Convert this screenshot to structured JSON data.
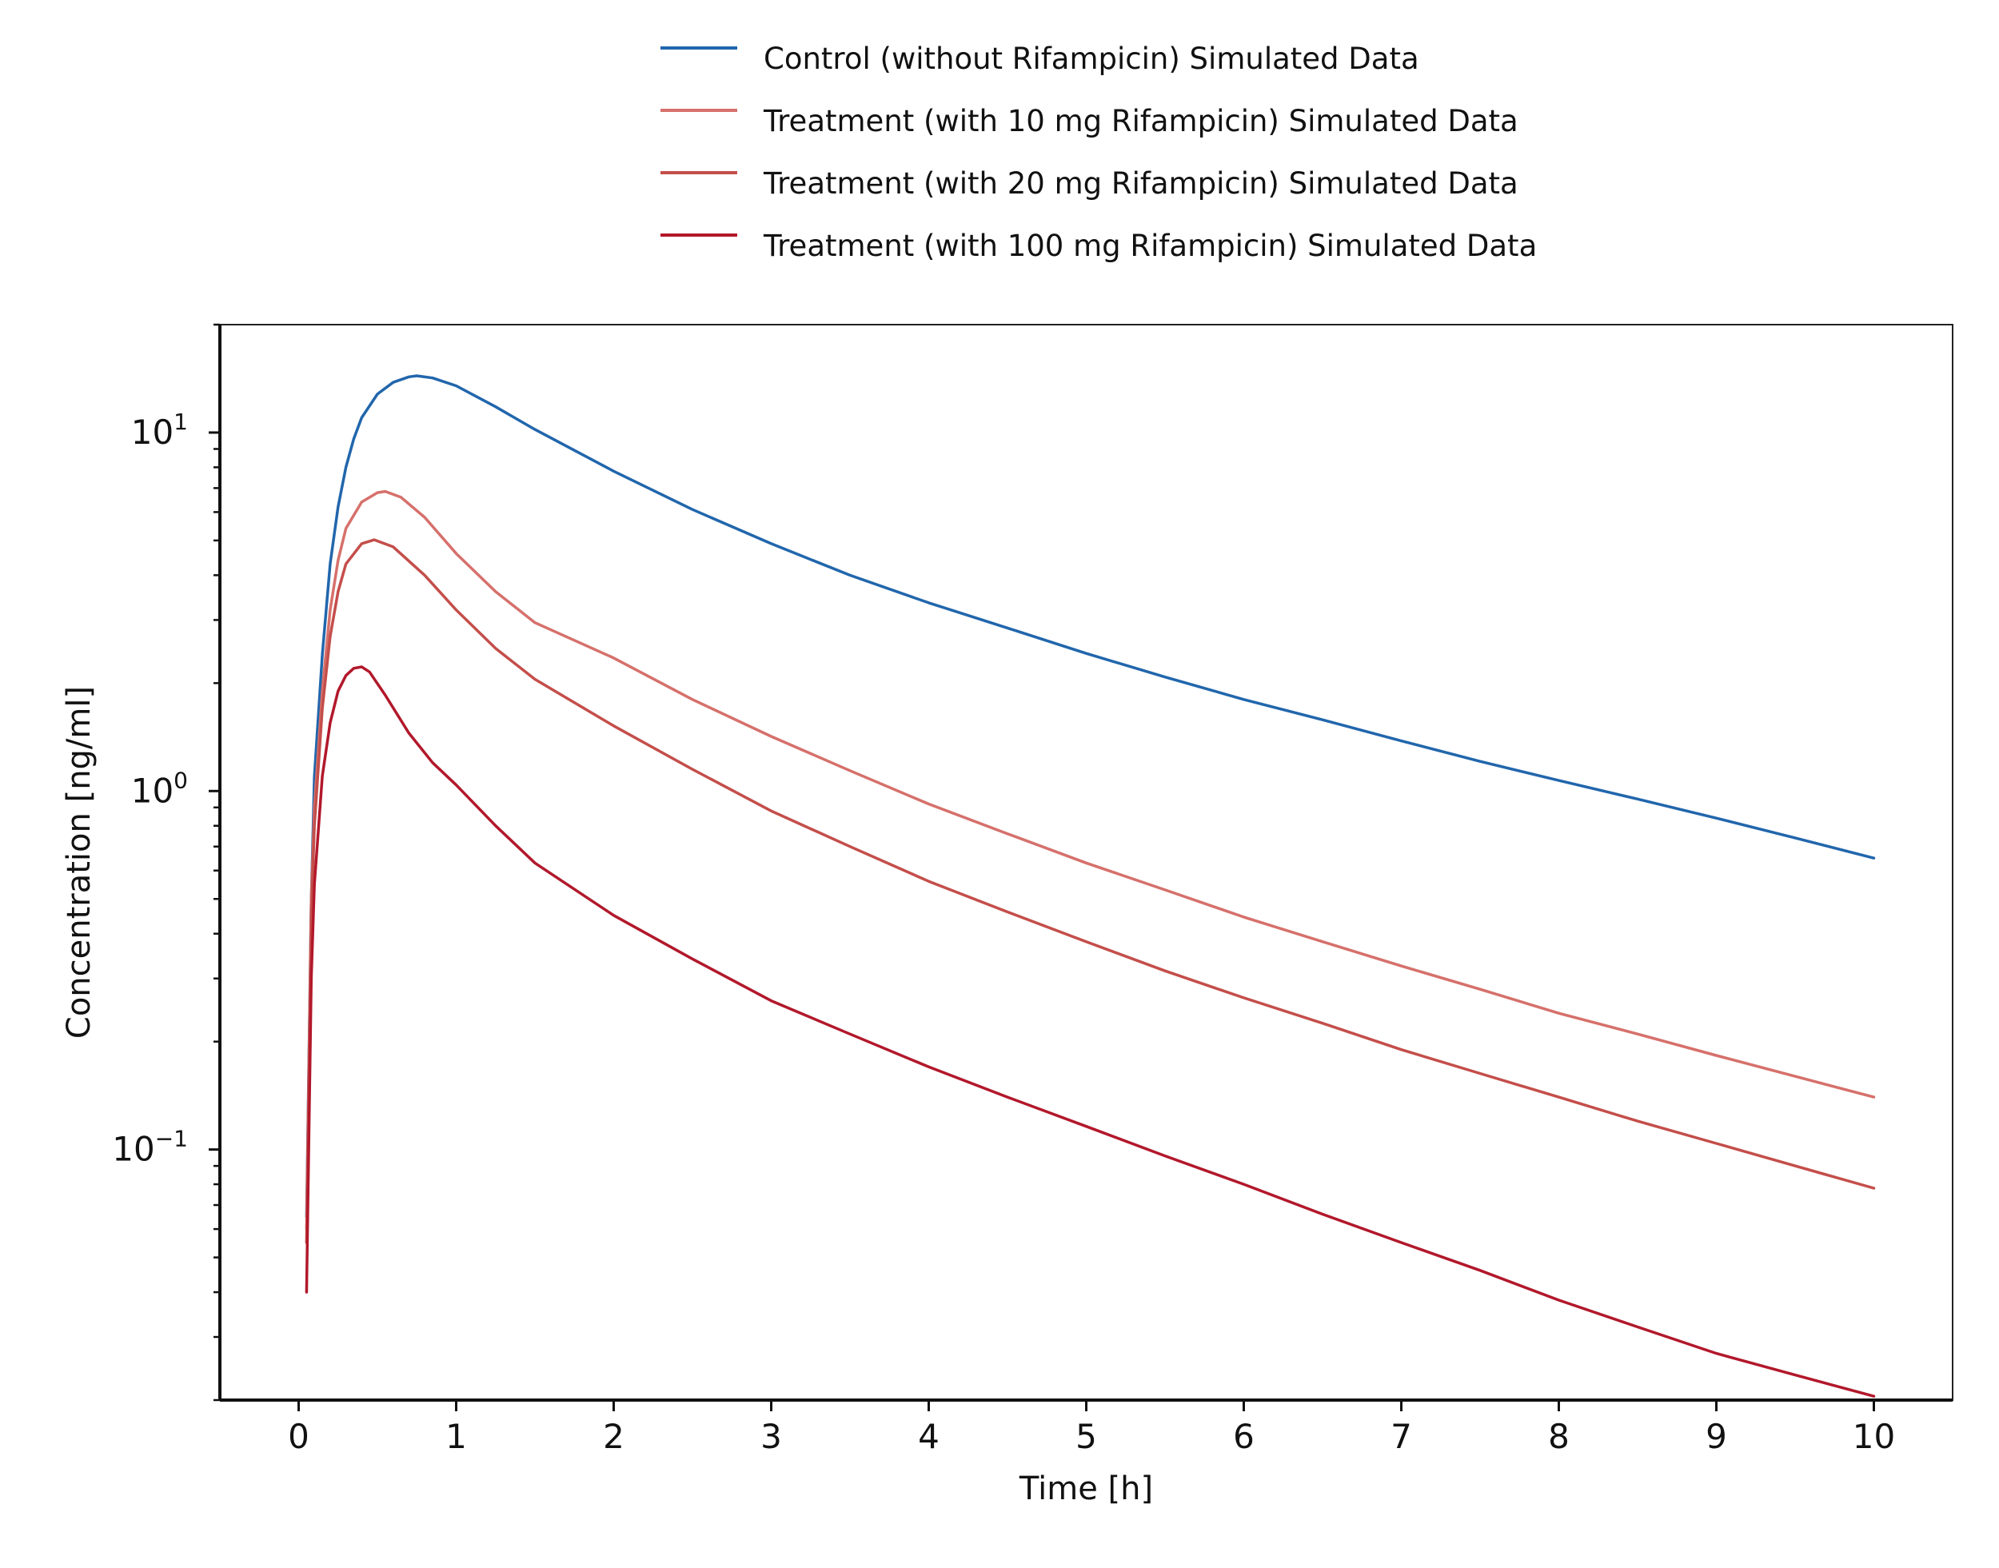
{
  "chart_data": {
    "type": "line",
    "title": "",
    "xlabel": "Time [h]",
    "ylabel": "Concentration [ng/ml]",
    "yscale": "log",
    "xlim": [
      -0.5,
      10.5
    ],
    "ylim": [
      0.02,
      20
    ],
    "x_ticks": [
      "0",
      "1",
      "2",
      "3",
      "4",
      "5",
      "6",
      "7",
      "8",
      "9",
      "10"
    ],
    "y_ticks": [
      {
        "base": "10",
        "exp": "1",
        "value": 10
      },
      {
        "base": "10",
        "exp": "0",
        "value": 1
      },
      {
        "base": "10",
        "exp": "−1",
        "value": 0.1
      }
    ],
    "grid": false,
    "legend_position": "top-center",
    "series": [
      {
        "name": "Control (without Rifampicin) Simulated Data",
        "color": "#2166ac",
        "points": [
          [
            0.05,
            0.065
          ],
          [
            0.08,
            0.5
          ],
          [
            0.1,
            1.1
          ],
          [
            0.15,
            2.4
          ],
          [
            0.2,
            4.3
          ],
          [
            0.25,
            6.2
          ],
          [
            0.3,
            8.0
          ],
          [
            0.35,
            9.6
          ],
          [
            0.4,
            11.0
          ],
          [
            0.5,
            12.8
          ],
          [
            0.6,
            13.8
          ],
          [
            0.7,
            14.3
          ],
          [
            0.75,
            14.4
          ],
          [
            0.85,
            14.2
          ],
          [
            1.0,
            13.5
          ],
          [
            1.25,
            11.8
          ],
          [
            1.5,
            10.2
          ],
          [
            2.0,
            7.8
          ],
          [
            2.5,
            6.1
          ],
          [
            3.0,
            4.9
          ],
          [
            3.5,
            4.0
          ],
          [
            4.0,
            3.35
          ],
          [
            4.5,
            2.85
          ],
          [
            5.0,
            2.42
          ],
          [
            5.5,
            2.08
          ],
          [
            6.0,
            1.8
          ],
          [
            6.5,
            1.58
          ],
          [
            7.0,
            1.38
          ],
          [
            7.5,
            1.21
          ],
          [
            8.0,
            1.07
          ],
          [
            8.5,
            0.95
          ],
          [
            9.0,
            0.84
          ],
          [
            9.5,
            0.74
          ],
          [
            10.0,
            0.65
          ]
        ]
      },
      {
        "name": "Treatment (with 10 mg Rifampicin) Simulated Data",
        "color": "#d6706b",
        "points": [
          [
            0.05,
            0.06
          ],
          [
            0.08,
            0.5
          ],
          [
            0.1,
            0.9
          ],
          [
            0.15,
            1.9
          ],
          [
            0.2,
            3.2
          ],
          [
            0.25,
            4.4
          ],
          [
            0.3,
            5.4
          ],
          [
            0.4,
            6.4
          ],
          [
            0.5,
            6.8
          ],
          [
            0.55,
            6.85
          ],
          [
            0.65,
            6.6
          ],
          [
            0.8,
            5.8
          ],
          [
            1.0,
            4.6
          ],
          [
            1.25,
            3.6
          ],
          [
            1.5,
            2.95
          ],
          [
            2.0,
            2.35
          ],
          [
            2.5,
            1.8
          ],
          [
            3.0,
            1.42
          ],
          [
            3.5,
            1.14
          ],
          [
            4.0,
            0.92
          ],
          [
            4.5,
            0.76
          ],
          [
            5.0,
            0.63
          ],
          [
            5.5,
            0.53
          ],
          [
            6.0,
            0.445
          ],
          [
            6.5,
            0.38
          ],
          [
            7.0,
            0.325
          ],
          [
            7.5,
            0.28
          ],
          [
            8.0,
            0.24
          ],
          [
            8.5,
            0.21
          ],
          [
            9.0,
            0.183
          ],
          [
            9.5,
            0.16
          ],
          [
            10.0,
            0.14
          ]
        ]
      },
      {
        "name": "Treatment (with 20 mg Rifampicin) Simulated Data",
        "color": "#c44e4a",
        "points": [
          [
            0.05,
            0.055
          ],
          [
            0.08,
            0.45
          ],
          [
            0.1,
            0.8
          ],
          [
            0.15,
            1.7
          ],
          [
            0.2,
            2.7
          ],
          [
            0.25,
            3.6
          ],
          [
            0.3,
            4.3
          ],
          [
            0.4,
            4.9
          ],
          [
            0.48,
            5.02
          ],
          [
            0.6,
            4.8
          ],
          [
            0.8,
            4.0
          ],
          [
            1.0,
            3.2
          ],
          [
            1.25,
            2.5
          ],
          [
            1.5,
            2.05
          ],
          [
            2.0,
            1.52
          ],
          [
            2.5,
            1.15
          ],
          [
            3.0,
            0.88
          ],
          [
            3.5,
            0.7
          ],
          [
            4.0,
            0.56
          ],
          [
            4.5,
            0.46
          ],
          [
            5.0,
            0.38
          ],
          [
            5.5,
            0.315
          ],
          [
            6.0,
            0.265
          ],
          [
            6.5,
            0.225
          ],
          [
            7.0,
            0.19
          ],
          [
            7.5,
            0.163
          ],
          [
            8.0,
            0.14
          ],
          [
            8.5,
            0.12
          ],
          [
            9.0,
            0.104
          ],
          [
            9.5,
            0.09
          ],
          [
            10.0,
            0.078
          ]
        ]
      },
      {
        "name": "Treatment (with 100 mg Rifampicin) Simulated Data",
        "color": "#b2182b",
        "points": [
          [
            0.05,
            0.04
          ],
          [
            0.08,
            0.3
          ],
          [
            0.1,
            0.55
          ],
          [
            0.15,
            1.1
          ],
          [
            0.2,
            1.55
          ],
          [
            0.25,
            1.9
          ],
          [
            0.3,
            2.1
          ],
          [
            0.35,
            2.2
          ],
          [
            0.4,
            2.22
          ],
          [
            0.45,
            2.15
          ],
          [
            0.55,
            1.85
          ],
          [
            0.7,
            1.45
          ],
          [
            0.85,
            1.2
          ],
          [
            1.0,
            1.04
          ],
          [
            1.25,
            0.8
          ],
          [
            1.5,
            0.63
          ],
          [
            2.0,
            0.45
          ],
          [
            2.5,
            0.34
          ],
          [
            3.0,
            0.26
          ],
          [
            3.5,
            0.21
          ],
          [
            4.0,
            0.17
          ],
          [
            4.5,
            0.14
          ],
          [
            5.0,
            0.116
          ],
          [
            5.5,
            0.096
          ],
          [
            6.0,
            0.08
          ],
          [
            6.5,
            0.066
          ],
          [
            7.0,
            0.055
          ],
          [
            7.5,
            0.046
          ],
          [
            8.0,
            0.038
          ],
          [
            8.5,
            0.032
          ],
          [
            9.0,
            0.027
          ],
          [
            9.5,
            0.0235
          ],
          [
            10.0,
            0.0205
          ]
        ]
      }
    ]
  }
}
